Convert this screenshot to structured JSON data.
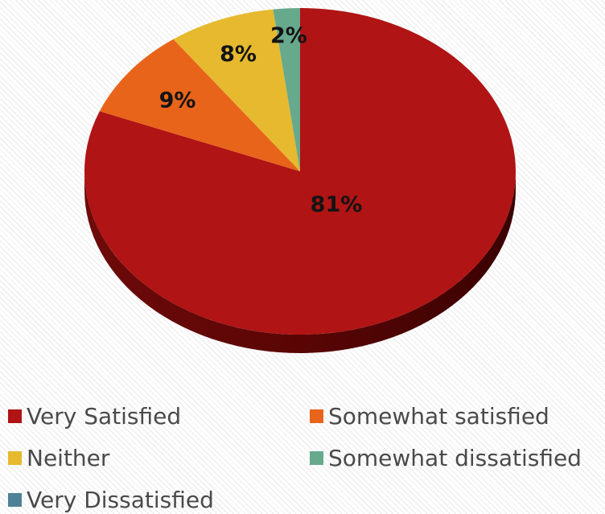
{
  "chart_data": {
    "type": "pie",
    "title": "",
    "categories": [
      "Very Satisfied",
      "Somewhat satisfied",
      "Neither",
      "Somewhat dissatisfied",
      "Very Dissatisfied"
    ],
    "values": [
      81,
      9,
      8,
      2,
      0
    ],
    "data_labels": [
      "81%",
      "9%",
      "8%",
      "2%",
      ""
    ],
    "colors": [
      "#B01414",
      "#E8641B",
      "#E6B92E",
      "#67A98D",
      "#4F8196"
    ],
    "legend_placement": "bottom",
    "style": "3d-pie"
  }
}
